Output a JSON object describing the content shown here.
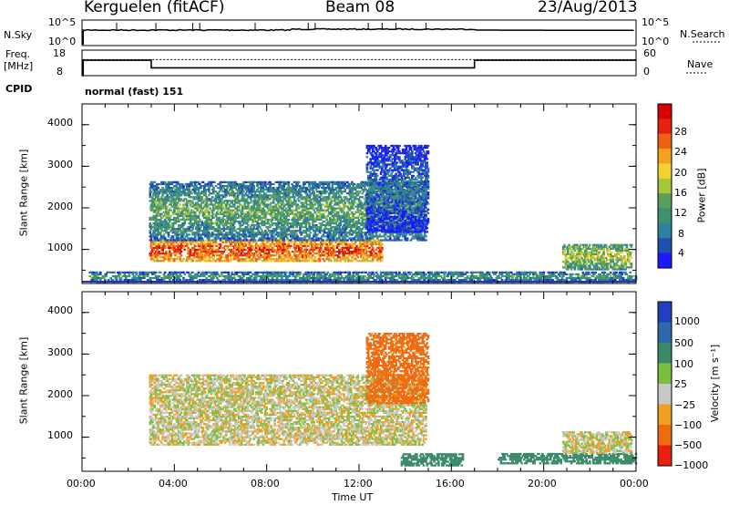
{
  "header": {
    "radar": "Kerguelen (fitACF)",
    "beam": "Beam 08",
    "date": "23/Aug/2013"
  },
  "strip": {
    "nsky_label": "N.Sky",
    "nsky_ticks": [
      "10^5",
      "10^0"
    ],
    "nsearch_label": "N.Search",
    "nsearch_ticks": [
      "10^5",
      "10^0"
    ],
    "freq_label_1": "Freq.",
    "freq_label_2": "[MHz]",
    "freq_ticks": [
      "18",
      "8"
    ],
    "nave_label": "Nave",
    "nave_ticks": [
      "60",
      "0"
    ],
    "cpid_label": "CPID",
    "cpid_value": "normal (fast) 151"
  },
  "chart_data": [
    {
      "type": "heatmap",
      "panel": "power",
      "ylabel": "Slant Range [km]",
      "yticks": [
        "4000",
        "3000",
        "2000",
        "1000"
      ],
      "ylim": [
        180,
        4500
      ],
      "xlim": [
        0,
        24
      ],
      "colorbar": {
        "label": "Power [dB]",
        "ticks": [
          "28",
          "24",
          "20",
          "16",
          "12",
          "8",
          "4"
        ],
        "colors": [
          "#1a1aff",
          "#1f4fb0",
          "#2e7fa0",
          "#3e9070",
          "#5aa05a",
          "#a8c63c",
          "#f2d230",
          "#f4a020",
          "#f06010",
          "#e82010",
          "#d80000"
        ]
      },
      "features": [
        {
          "start_ut": 2.9,
          "end_ut": 13.0,
          "range_km": [
            700,
            1200
          ],
          "power_db": 26
        },
        {
          "start_ut": 2.9,
          "end_ut": 14.9,
          "range_km": [
            1200,
            2600
          ],
          "power_db": 12
        },
        {
          "start_ut": 12.3,
          "end_ut": 15.0,
          "range_km": [
            1400,
            3500
          ],
          "power_db": 6
        },
        {
          "start_ut": 0.3,
          "end_ut": 24.0,
          "range_km": [
            200,
            450
          ],
          "power_db": 10
        },
        {
          "start_ut": 20.8,
          "end_ut": 23.8,
          "range_km": [
            500,
            1100
          ],
          "power_db": 16
        }
      ]
    },
    {
      "type": "heatmap",
      "panel": "velocity",
      "ylabel": "Slant Range [km]",
      "yticks": [
        "4000",
        "3000",
        "2000",
        "1000"
      ],
      "ylim": [
        180,
        4500
      ],
      "xlim": [
        0,
        24
      ],
      "xticks": [
        "00:00",
        "04:00",
        "08:00",
        "12:00",
        "16:00",
        "20:00",
        "00:00"
      ],
      "xlabel": "Time UT",
      "colorbar": {
        "label": "Velocity [m s⁻¹]",
        "ticks": [
          "1000",
          "500",
          "100",
          "25",
          "−25",
          "−100",
          "−500",
          "−1000"
        ],
        "colors": [
          "#2040c0",
          "#2e6aa8",
          "#3a8a6a",
          "#78c040",
          "#c8c8c8",
          "#f0a020",
          "#f06a10",
          "#e82010"
        ]
      },
      "features": [
        {
          "start_ut": 2.9,
          "end_ut": 14.9,
          "range_km": [
            800,
            2500
          ],
          "velocity_ms": 0
        },
        {
          "start_ut": 12.3,
          "end_ut": 15.0,
          "range_km": [
            1800,
            3500
          ],
          "velocity_ms": -150
        },
        {
          "start_ut": 13.8,
          "end_ut": 16.5,
          "range_km": [
            300,
            600
          ],
          "velocity_ms": 150
        },
        {
          "start_ut": 18.0,
          "end_ut": 24.0,
          "range_km": [
            350,
            600
          ],
          "velocity_ms": 150
        },
        {
          "start_ut": 20.8,
          "end_ut": 23.8,
          "range_km": [
            600,
            1100
          ],
          "velocity_ms": 0
        }
      ]
    }
  ]
}
